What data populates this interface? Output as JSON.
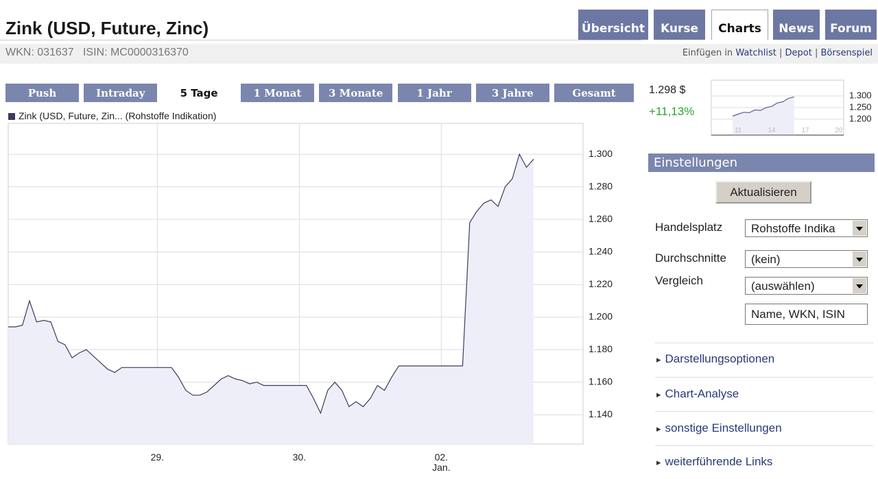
{
  "header": {
    "title": "Zink (USD, Future, Zinc)",
    "wkn": "WKN: 031637",
    "isin": "ISIN: MC0000316370",
    "insert_label": "Einfügen in",
    "links": [
      "Watchlist",
      "Depot",
      "Börsenspiel"
    ]
  },
  "nav_tabs": [
    "Übersicht",
    "Kurse",
    "Charts",
    "News",
    "Forum"
  ],
  "active_nav": 2,
  "period_tabs": [
    "Push",
    "Intraday",
    "5 Tage",
    "1 Monat",
    "3 Monate",
    "1 Jahr",
    "3 Jahre",
    "Gesamt"
  ],
  "active_period": 2,
  "quote": {
    "price": "1.298 $",
    "change": "+11,13%"
  },
  "chart_data": [
    {
      "type": "line",
      "categories": [
        null,
        null,
        null,
        null,
        null,
        null,
        null,
        null,
        null,
        null,
        null,
        null,
        null,
        null,
        null,
        null,
        null,
        null,
        null,
        null,
        null,
        "29.",
        null,
        null,
        null,
        null,
        null,
        null,
        null,
        null,
        null,
        null,
        null,
        null,
        null,
        null,
        null,
        null,
        null,
        null,
        null,
        "30.",
        null,
        null,
        null,
        null,
        null,
        null,
        null,
        null,
        null,
        null,
        null,
        null,
        null,
        null,
        null,
        null,
        null,
        null,
        null,
        "02.\nJan.",
        null,
        null,
        null,
        null,
        null,
        null,
        null,
        null,
        null,
        null,
        null,
        null,
        null
      ],
      "series": [
        {
          "name": "Zink (USD, Future, Zin... (Rohstoffe Indikation)",
          "color": "#3b3b5c",
          "values": [
            1.194,
            1.194,
            1.195,
            1.21,
            1.197,
            1.198,
            1.197,
            1.185,
            1.183,
            1.175,
            1.178,
            1.18,
            1.176,
            1.172,
            1.168,
            1.166,
            1.169,
            1.169,
            1.169,
            1.169,
            1.169,
            1.169,
            1.169,
            1.169,
            1.163,
            1.155,
            1.152,
            1.152,
            1.154,
            1.158,
            1.162,
            1.164,
            1.162,
            1.161,
            1.159,
            1.16,
            1.158,
            1.158,
            1.158,
            1.158,
            1.158,
            1.158,
            1.158,
            1.15,
            1.141,
            1.155,
            1.16,
            1.155,
            1.145,
            1.148,
            1.145,
            1.15,
            1.158,
            1.155,
            1.163,
            1.17,
            1.17,
            1.17,
            1.17,
            1.17,
            1.17,
            1.17,
            1.17,
            1.17,
            1.17,
            1.258,
            1.265,
            1.27,
            1.272,
            1.268,
            1.28,
            1.285,
            1.3,
            1.292,
            1.297
          ]
        }
      ],
      "ylim": [
        1.122,
        1.319
      ],
      "yticks": [
        {
          "value": 1.14,
          "label": "1.140"
        },
        {
          "value": 1.16,
          "label": "1.160"
        },
        {
          "value": 1.18,
          "label": "1.180"
        },
        {
          "value": 1.2,
          "label": "1.200"
        },
        {
          "value": 1.22,
          "label": "1.220"
        },
        {
          "value": 1.24,
          "label": "1.240"
        },
        {
          "value": 1.26,
          "label": "1.260"
        },
        {
          "value": 1.28,
          "label": "1.280"
        },
        {
          "value": 1.3,
          "label": "1.300"
        }
      ],
      "grid": true,
      "fill": "#eeeef9"
    },
    {
      "type": "line",
      "categories": [
        null,
        "11",
        null,
        null,
        null,
        null,
        null,
        "14",
        null,
        null,
        null,
        null,
        null,
        "17",
        null,
        null,
        null,
        null,
        null,
        "20"
      ],
      "series": [
        {
          "name": null,
          "color": "#5a5f8c",
          "values": [
            1.213,
            1.222,
            1.23,
            1.228,
            1.24,
            1.238,
            1.25,
            1.255,
            1.27,
            1.275,
            1.29,
            1.296,
            null,
            null,
            null,
            null,
            null,
            null,
            null,
            null
          ]
        }
      ],
      "ylim": [
        1.129,
        1.368
      ],
      "yticks": [
        {
          "value": 1.2,
          "label": "1.200"
        },
        {
          "value": 1.25,
          "label": "1.250"
        },
        {
          "value": 1.3,
          "label": "1.300"
        }
      ],
      "grid": true,
      "fill": "#eeeef9"
    }
  ],
  "settings": {
    "title": "Einstellungen",
    "button": "Aktualisieren",
    "fields": [
      {
        "label": "Handelsplatz",
        "value": "Rohstoffe Indika"
      },
      {
        "label": "Durchschnitte",
        "value": "(kein)"
      },
      {
        "label": "Vergleich",
        "value": "(auswählen)"
      }
    ],
    "input": "Name, WKN, ISIN",
    "links": [
      "Darstellungsoptionen",
      "Chart-Analyse",
      "sonstige Einstellungen",
      "weiterführende Links"
    ]
  }
}
